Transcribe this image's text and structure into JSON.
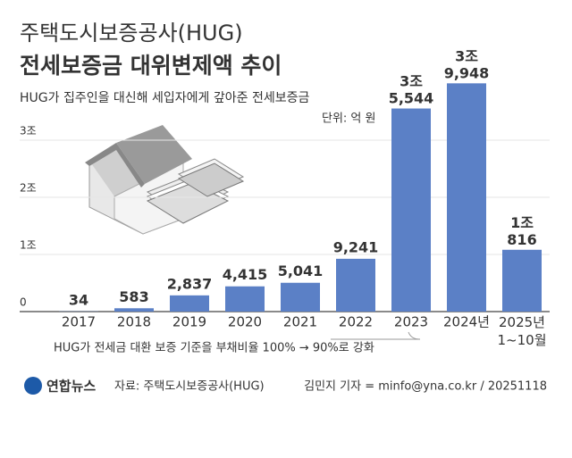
{
  "chart_data": {
    "type": "bar",
    "supertitle": "주택도시보증공사(HUG)",
    "title": "전세보증금 대위변제액 추이",
    "subtitle": "HUG가 집주인을 대신해 세입자에게 갚아준 전세보증금",
    "unit": "단위: 억 원",
    "categories": [
      "2017",
      "2018",
      "2019",
      "2020",
      "2021",
      "2022",
      "2023",
      "2024년",
      [
        "2025년",
        "1~10월"
      ]
    ],
    "values": [
      34,
      583,
      2837,
      4415,
      5041,
      9241,
      35544,
      39948,
      10816
    ],
    "value_labels": [
      "34",
      "583",
      "2,837",
      "4,415",
      "5,041",
      "9,241",
      [
        "3조",
        "5,544"
      ],
      [
        "3조",
        "9,948"
      ],
      [
        "1조",
        "816"
      ]
    ],
    "color": "#5b80c6",
    "ylim": [
      0,
      40000
    ],
    "yticks": [
      0,
      {
        "value": 10000,
        "label": "1조"
      },
      {
        "value": 20000,
        "label": "2조"
      },
      {
        "value": 30000,
        "label": "3조"
      }
    ],
    "grid": true,
    "annotation": "HUG가 전세금 대환 보증 기준을 부채비율 100% → 90%로 강화",
    "logo": "연합뉴스",
    "source": "자료: 주택도시보증공사(HUG)",
    "credit": "김민지 기자 = minfo@yna.co.kr / 20251118"
  }
}
